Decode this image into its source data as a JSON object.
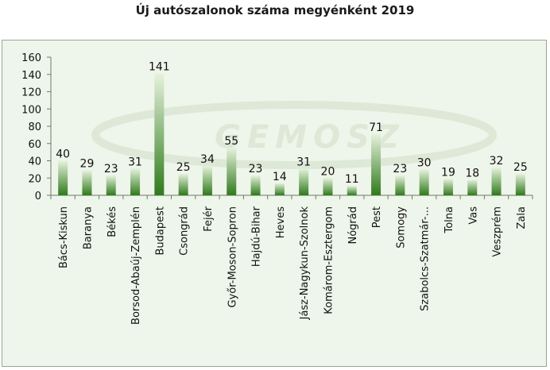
{
  "chart_data": {
    "type": "bar",
    "title": "Új autószalonok száma megyénként 2019",
    "xlabel": "",
    "ylabel": "",
    "ylim": [
      0,
      160
    ],
    "yticks": [
      0,
      20,
      40,
      60,
      80,
      100,
      120,
      140,
      160
    ],
    "grid": false,
    "legend": "none",
    "colors": {
      "bar_top": "#e6f2dc",
      "bar_bottom": "#2f7a1c",
      "background": "#eef5ea",
      "watermark": "#dde8d6"
    },
    "watermark_text": "GEMOSZ",
    "categories": [
      "Bács-Kiskun",
      "Baranya",
      "Békés",
      "Borsod-Abaúj-Zemplén",
      "Budapest",
      "Csongrád",
      "Fejér",
      "Győr-Moson-Sopron",
      "Hajdú-Bihar",
      "Heves",
      "Jász-Nagykun-Szolnok",
      "Komárom-Esztergom",
      "Nógrád",
      "Pest",
      "Somogy",
      "Szabolcs-Szatmár-...",
      "Tolna",
      "Vas",
      "Veszprém",
      "Zala"
    ],
    "values": [
      40,
      29,
      23,
      31,
      141,
      25,
      34,
      55,
      23,
      14,
      31,
      20,
      11,
      71,
      23,
      30,
      19,
      18,
      32,
      25
    ]
  }
}
